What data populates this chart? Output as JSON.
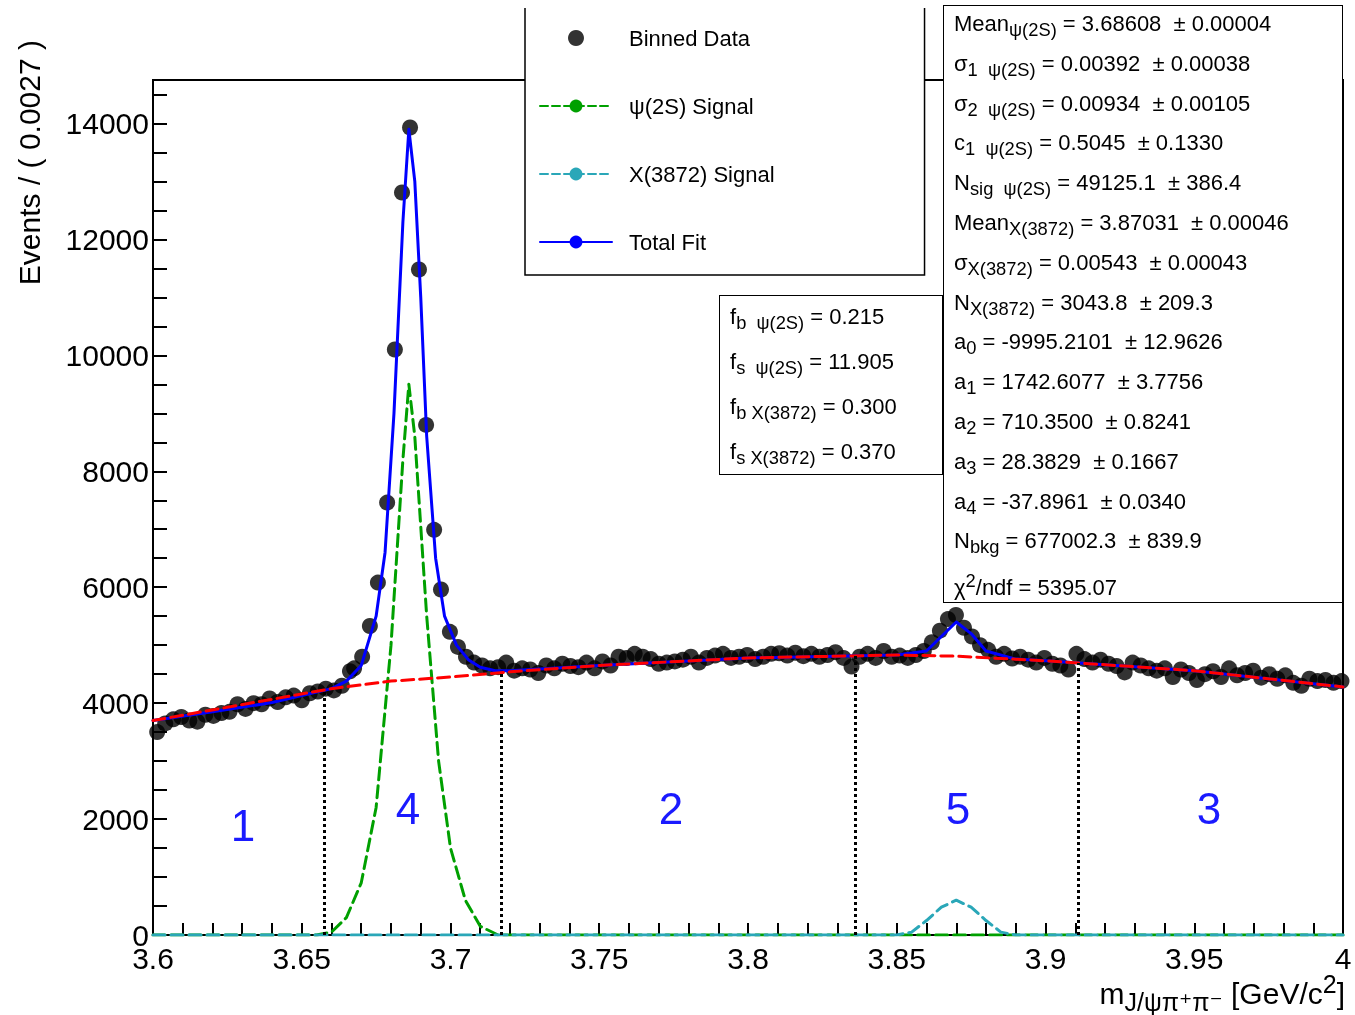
{
  "chart_data": {
    "type": "scatter",
    "ylabel": "Events / ( 0.0027 )",
    "xlabel": "m$_{J/ψπ⁺π⁻}$ [GeV/c$^{2}$]",
    "xlim": [
      3.6,
      4.0
    ],
    "xticks": [
      {
        "value": 3.6,
        "label": "3.6"
      },
      {
        "value": 3.61,
        "label": null
      },
      {
        "value": 3.62,
        "label": null
      },
      {
        "value": 3.63,
        "label": null
      },
      {
        "value": 3.64,
        "label": null
      },
      3.65,
      {
        "value": 3.66,
        "label": null
      },
      {
        "value": 3.67,
        "label": null
      },
      {
        "value": 3.68,
        "label": null
      },
      {
        "value": 3.69,
        "label": null
      },
      3.7,
      {
        "value": 3.71,
        "label": null
      },
      {
        "value": 3.72,
        "label": null
      },
      {
        "value": 3.73,
        "label": null
      },
      {
        "value": 3.74,
        "label": null
      },
      3.75,
      {
        "value": 3.76,
        "label": null
      },
      {
        "value": 3.77,
        "label": null
      },
      {
        "value": 3.78,
        "label": null
      },
      {
        "value": 3.79,
        "label": null
      },
      3.8,
      {
        "value": 3.81,
        "label": null
      },
      {
        "value": 3.82,
        "label": null
      },
      {
        "value": 3.83,
        "label": null
      },
      {
        "value": 3.84,
        "label": null
      },
      3.85,
      {
        "value": 3.86,
        "label": null
      },
      {
        "value": 3.87,
        "label": null
      },
      {
        "value": 3.88,
        "label": null
      },
      {
        "value": 3.89,
        "label": null
      },
      3.9,
      {
        "value": 3.91,
        "label": null
      },
      {
        "value": 3.92,
        "label": null
      },
      {
        "value": 3.93,
        "label": null
      },
      {
        "value": 3.94,
        "label": null
      },
      3.95,
      {
        "value": 3.96,
        "label": null
      },
      {
        "value": 3.97,
        "label": null
      },
      {
        "value": 3.98,
        "label": null
      },
      {
        "value": 3.99,
        "label": null
      },
      {
        "value": 4.0,
        "label": "4"
      }
    ],
    "ylim": [
      0,
      14750
    ],
    "yticks": [
      0,
      {
        "value": 500,
        "label": null
      },
      {
        "value": 1000,
        "label": null
      },
      {
        "value": 1500,
        "label": null
      },
      2000,
      {
        "value": 2500,
        "label": null
      },
      {
        "value": 3000,
        "label": null
      },
      {
        "value": 3500,
        "label": null
      },
      4000,
      {
        "value": 4500,
        "label": null
      },
      {
        "value": 5000,
        "label": null
      },
      {
        "value": 5500,
        "label": null
      },
      6000,
      {
        "value": 6500,
        "label": null
      },
      {
        "value": 7000,
        "label": null
      },
      {
        "value": 7500,
        "label": null
      },
      8000,
      {
        "value": 8500,
        "label": null
      },
      {
        "value": 9000,
        "label": null
      },
      {
        "value": 9500,
        "label": null
      },
      10000,
      {
        "value": 10500,
        "label": null
      },
      {
        "value": 11000,
        "label": null
      },
      {
        "value": 11500,
        "label": null
      },
      12000,
      {
        "value": 12500,
        "label": null
      },
      {
        "value": 13000,
        "label": null
      },
      {
        "value": 13500,
        "label": null
      },
      14000,
      {
        "value": 14500,
        "label": null
      }
    ],
    "grid": false,
    "legend": "top",
    "series": [
      {
        "name": "Binned Data",
        "marker": "circle",
        "color": "#000000",
        "x": [
          3.6014,
          3.6041,
          3.6068,
          3.6095,
          3.6122,
          3.6149,
          3.6176,
          3.6203,
          3.623,
          3.6257,
          3.6284,
          3.6311,
          3.6338,
          3.6365,
          3.6392,
          3.6419,
          3.6446,
          3.6473,
          3.65,
          3.6527,
          3.6554,
          3.6581,
          3.6608,
          3.6635,
          3.6662,
          3.6676,
          3.6703,
          3.6729,
          3.6756,
          3.6787,
          3.6813,
          3.6837,
          3.6864,
          3.6894,
          3.6918,
          3.6945,
          3.6968,
          3.6998,
          3.7025,
          3.7052,
          3.7079,
          3.7106,
          3.7133,
          3.716,
          3.7187,
          3.7214,
          3.7241,
          3.7268,
          3.7295,
          3.7322,
          3.7349,
          3.7376,
          3.7403,
          3.743,
          3.7457,
          3.7484,
          3.7511,
          3.7538,
          3.7565,
          3.7592,
          3.7619,
          3.7646,
          3.7673,
          3.77,
          3.7727,
          3.7754,
          3.7781,
          3.7808,
          3.7835,
          3.7862,
          3.7889,
          3.7916,
          3.7943,
          3.797,
          3.7997,
          3.8024,
          3.8051,
          3.8078,
          3.8105,
          3.8132,
          3.8159,
          3.8186,
          3.8213,
          3.824,
          3.8267,
          3.8294,
          3.8321,
          3.8348,
          3.8375,
          3.8402,
          3.8429,
          3.8456,
          3.8483,
          3.851,
          3.8537,
          3.8564,
          3.8591,
          3.8618,
          3.8645,
          3.8672,
          3.8699,
          3.8726,
          3.8753,
          3.878,
          3.8807,
          3.8834,
          3.8861,
          3.8888,
          3.8915,
          3.8942,
          3.8969,
          3.8996,
          3.9023,
          3.905,
          3.9077,
          3.9104,
          3.9131,
          3.9158,
          3.9185,
          3.9212,
          3.9239,
          3.9266,
          3.9293,
          3.932,
          3.9347,
          3.9374,
          3.9401,
          3.9428,
          3.9455,
          3.9482,
          3.9509,
          3.9536,
          3.9563,
          3.959,
          3.9617,
          3.9644,
          3.9671,
          3.9698,
          3.9725,
          3.9752,
          3.9779,
          3.9806,
          3.9833,
          3.986,
          3.9887,
          3.9914,
          3.9941,
          3.9968,
          3.9995
        ],
        "values": [
          3500,
          3650,
          3720,
          3760,
          3700,
          3680,
          3800,
          3780,
          3830,
          3850,
          3980,
          3900,
          4000,
          3980,
          4080,
          4020,
          4100,
          4130,
          4050,
          4170,
          4200,
          4250,
          4220,
          4300,
          4550,
          4600,
          4800,
          5330,
          6080,
          7460,
          10100,
          12810,
          13930,
          11480,
          8800,
          6990,
          5960,
          5230,
          4970,
          4800,
          4700,
          4650,
          4600,
          4620,
          4700,
          4560,
          4600,
          4580,
          4520,
          4650,
          4600,
          4680,
          4640,
          4620,
          4700,
          4600,
          4720,
          4650,
          4800,
          4780,
          4850,
          4800,
          4760,
          4680,
          4700,
          4720,
          4750,
          4800,
          4700,
          4780,
          4820,
          4850,
          4780,
          4800,
          4830,
          4760,
          4800,
          4850,
          4860,
          4820,
          4870,
          4810,
          4850,
          4800,
          4830,
          4880,
          4780,
          4630,
          4800,
          4850,
          4780,
          4900,
          4800,
          4820,
          4780,
          4830,
          4900,
          5050,
          5250,
          5450,
          5520,
          5300,
          5150,
          5000,
          4920,
          4800,
          4850,
          4770,
          4800,
          4750,
          4700,
          4780,
          4680,
          4650,
          4580,
          4850,
          4760,
          4700,
          4750,
          4680,
          4640,
          4530,
          4700,
          4650,
          4600,
          4560,
          4600,
          4450,
          4580,
          4520,
          4400,
          4500,
          4550,
          4450,
          4600,
          4480,
          4520,
          4560,
          4440,
          4500,
          4420,
          4480,
          4350,
          4300,
          4420,
          4380,
          4400,
          4350,
          4380
        ]
      },
      {
        "name": "ψ(2S) Signal",
        "type": "line",
        "marker": "none",
        "color": "#00a000",
        "line_style": "dashed",
        "x": [
          3.6,
          3.655,
          3.66,
          3.665,
          3.67,
          3.675,
          3.68,
          3.684,
          3.686,
          3.688,
          3.692,
          3.696,
          3.7,
          3.705,
          3.71,
          3.716,
          4.0
        ],
        "values": [
          0,
          0,
          50,
          300,
          900,
          2200,
          5000,
          8200,
          9500,
          8600,
          5500,
          3000,
          1500,
          600,
          150,
          0,
          0
        ]
      },
      {
        "name": "X(3872) Signal",
        "type": "line",
        "marker": "none",
        "color": "#2aa7b8",
        "line_style": "dashed",
        "x": [
          3.6,
          3.85,
          3.855,
          3.86,
          3.865,
          3.87,
          3.875,
          3.88,
          3.885,
          3.89,
          4.0
        ],
        "values": [
          0,
          0,
          50,
          250,
          480,
          600,
          480,
          250,
          50,
          0,
          0
        ]
      },
      {
        "name": "Total Fit",
        "type": "line",
        "marker": "none",
        "color": "#0000ff",
        "line_style": "solid",
        "x": [
          3.6,
          3.62,
          3.64,
          3.66,
          3.665,
          3.67,
          3.675,
          3.678,
          3.681,
          3.684,
          3.686,
          3.688,
          3.69,
          3.692,
          3.695,
          3.698,
          3.702,
          3.706,
          3.71,
          3.715,
          3.72,
          3.75,
          3.8,
          3.85,
          3.86,
          3.865,
          3.87,
          3.875,
          3.88,
          3.89,
          3.9,
          3.95,
          4.0
        ],
        "values": [
          3700,
          3850,
          4010,
          4250,
          4380,
          4650,
          5500,
          6600,
          9000,
          12300,
          13900,
          13000,
          11000,
          8600,
          6500,
          5500,
          5000,
          4750,
          4620,
          4560,
          4560,
          4650,
          4780,
          4830,
          4900,
          5150,
          5400,
          5200,
          4900,
          4760,
          4730,
          4560,
          4280
        ]
      },
      {
        "type": "line",
        "marker": "none",
        "color": "#ff0000",
        "line_style": "dashed",
        "x": [
          3.6,
          3.66,
          3.68,
          3.7,
          3.72,
          3.75,
          3.8,
          3.85,
          3.87,
          3.9,
          3.95,
          4.0
        ],
        "values": [
          3700,
          4250,
          4380,
          4450,
          4540,
          4650,
          4780,
          4830,
          4810,
          4730,
          4560,
          4280
        ]
      }
    ],
    "ref_lines": [
      {
        "axis": "x",
        "value": 3.6575,
        "color": "#000000",
        "line_style": "dotted"
      },
      {
        "axis": "x",
        "value": 3.717,
        "color": "#000000",
        "line_style": "dotted"
      },
      {
        "axis": "x",
        "value": 3.836,
        "color": "#000000",
        "line_style": "dotted"
      },
      {
        "axis": "x",
        "value": 3.911,
        "color": "#000000",
        "line_style": "dotted"
      }
    ],
    "annotations": [
      "Mean$_{ψ(2S)}$ = 3.68608  ± 0.00004\nσ$_{1  ψ(2S)}$ = 0.00392  ± 0.00038\nσ$_{2  ψ(2S)}$ = 0.00934  ± 0.00105\nc$_{1  ψ(2S)}$ = 0.5045  ± 0.1330\nN$_{sig  ψ(2S)}$ = 49125.1  ± 386.4\nMean$_{X(3872)}$ = 3.87031  ± 0.00046\nσ$_{X(3872)}$ = 0.00543  ± 0.00043\nN$_{X(3872)}$ = 3043.8  ± 209.3\na$_{0}$ = -9995.2101  ± 12.9626\na$_{1}$ = 1742.6077  ± 3.7756\na$_{2}$ = 710.3500  ± 0.8241\na$_{3}$ = 28.3829  ± 0.1667\na$_{4}$ = -37.8961  ± 0.0340\nN$_{bkg}$ = 677002.3  ± 839.9\nχ$^{2}$/ndf = 5395.07",
      "f$_{b  ψ(2S)}$ = 0.215\nf$_{s  ψ(2S)}$ = 11.905\nf$_{b X(3872)}$ = 0.300\nf$_{s X(3872)}$ = 0.370",
      "1",
      "4",
      "2",
      "5",
      "3"
    ]
  }
}
